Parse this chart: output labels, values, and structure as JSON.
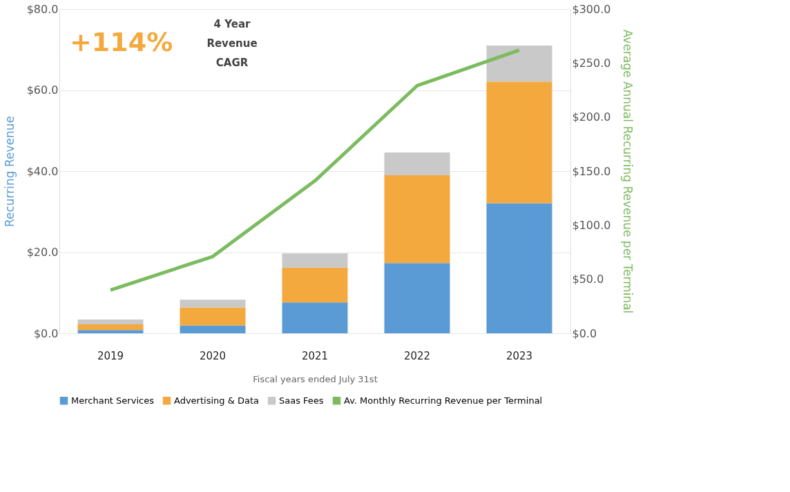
{
  "chart_data": {
    "type": "bar",
    "stacked": true,
    "xlabel": "Fiscal years ended July 31st",
    "ylabel": "Recurring Revenue",
    "y2label": "Average Annual Recurring Revenue per Terminal",
    "categories": [
      "2019",
      "2020",
      "2021",
      "2022",
      "2023"
    ],
    "series": [
      {
        "name": "Merchant Services",
        "color": "#5b9bd5",
        "values": [
          0.8,
          1.9,
          7.6,
          17.3,
          32.1
        ]
      },
      {
        "name": "Advertising & Data",
        "color": "#f4a93f",
        "values": [
          1.4,
          4.5,
          8.6,
          21.7,
          30.0
        ]
      },
      {
        "name": "Saas Fees",
        "color": "#c9c9c9",
        "values": [
          1.2,
          1.9,
          3.5,
          5.6,
          8.9
        ]
      },
      {
        "name": "Av. Monthly Recurring Revenue per Terminal",
        "color": "#7cbb5f",
        "type": "line",
        "axis": "y2",
        "values": [
          40,
          71,
          141,
          229,
          262
        ]
      }
    ],
    "ylim": [
      0,
      80
    ],
    "yticks": [
      {
        "value": 0,
        "label": "$0.0"
      },
      {
        "value": 20,
        "label": "$20.0"
      },
      {
        "value": 40,
        "label": "$40.0"
      },
      {
        "value": 60,
        "label": "$60.0"
      },
      {
        "value": 80,
        "label": "$80.0"
      }
    ],
    "y2lim": [
      0,
      300
    ],
    "y2ticks": [
      {
        "value": 0,
        "label": "$0.0"
      },
      {
        "value": 50,
        "label": "$50.0"
      },
      {
        "value": 100,
        "label": "$100.0"
      },
      {
        "value": 150,
        "label": "$150.0"
      },
      {
        "value": 200,
        "label": "$200.0"
      },
      {
        "value": 250,
        "label": "$250.0"
      },
      {
        "value": 300,
        "label": "$300.0"
      }
    ],
    "annotations": [
      "+114%",
      "4 Year Revenue CAGR"
    ],
    "grid": "y",
    "legend": "bottom",
    "marker": "none",
    "line_style": "solid"
  }
}
